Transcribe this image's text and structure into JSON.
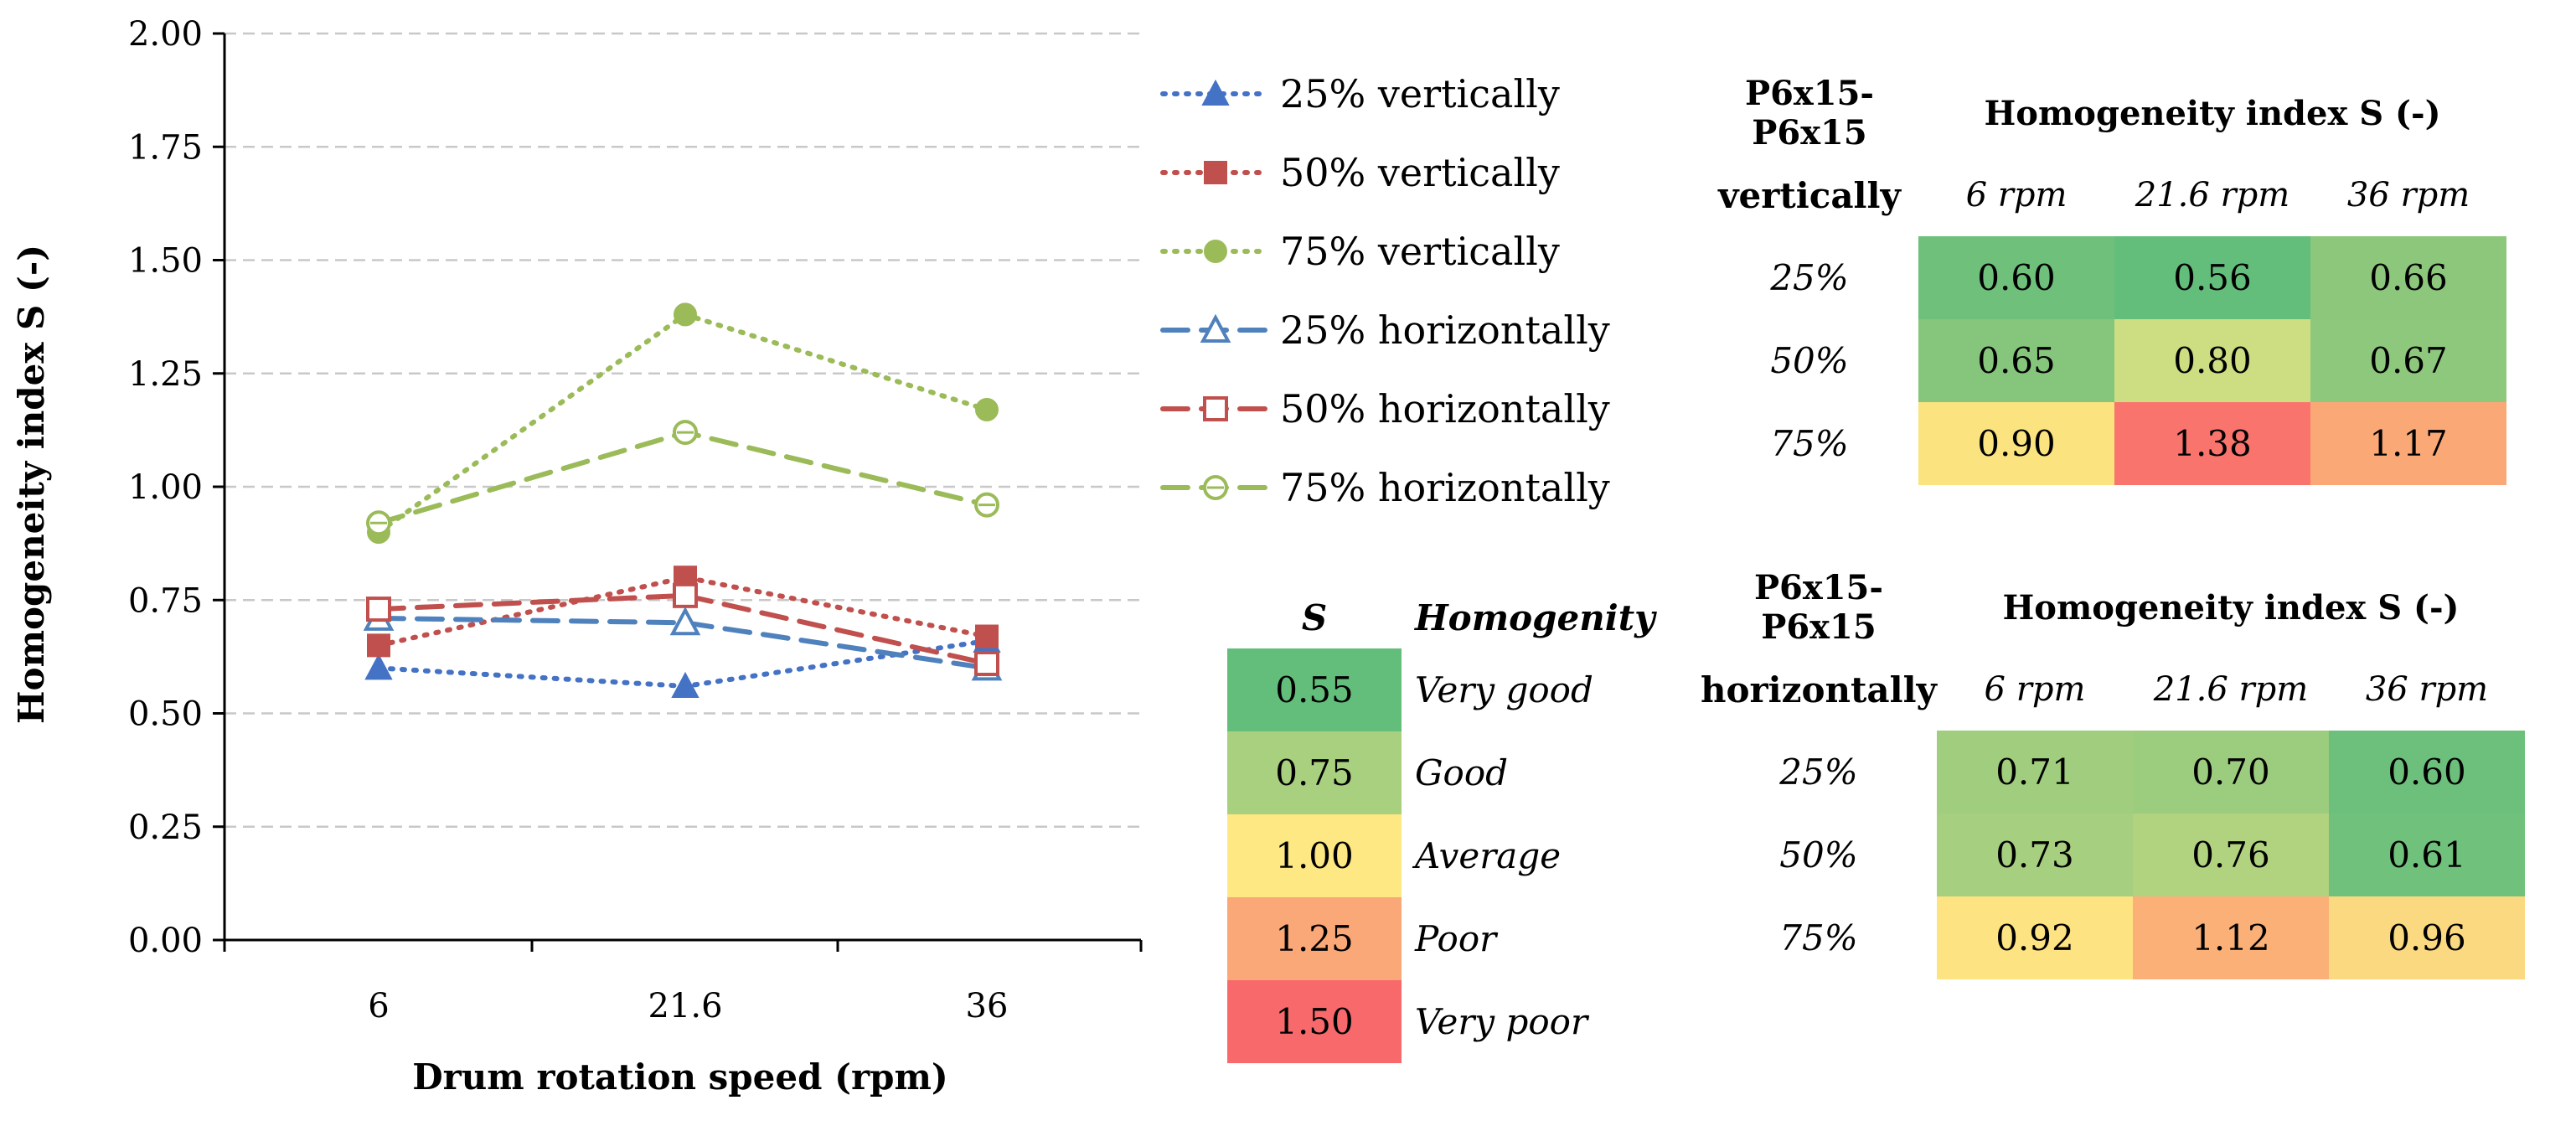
{
  "chart_data": {
    "type": "line",
    "ylabel": "Homogeneity index S (-)",
    "xlabel": "Drum rotation speed (rpm)",
    "categories": [
      "6",
      "21.6",
      "36"
    ],
    "ylim": [
      0,
      2
    ],
    "yticks": [
      "0.00",
      "0.25",
      "0.50",
      "0.75",
      "1.00",
      "1.25",
      "1.50",
      "1.75",
      "2.00"
    ],
    "grid": true,
    "legend_position": "right",
    "series": [
      {
        "name": "25% vertically",
        "values": [
          0.6,
          0.56,
          0.66
        ],
        "color": "#4472C4",
        "line": "dotted",
        "marker": "triangle-filled"
      },
      {
        "name": "50% vertically",
        "values": [
          0.65,
          0.8,
          0.67
        ],
        "color": "#C0504D",
        "line": "dotted",
        "marker": "square-filled"
      },
      {
        "name": "75% vertically",
        "values": [
          0.9,
          1.38,
          1.17
        ],
        "color": "#9BBB59",
        "line": "dotted",
        "marker": "circle-filled"
      },
      {
        "name": "25% horizontally",
        "values": [
          0.71,
          0.7,
          0.6
        ],
        "color": "#4F81BD",
        "line": "dashed",
        "marker": "triangle-open"
      },
      {
        "name": "50% horizontally",
        "values": [
          0.73,
          0.76,
          0.61
        ],
        "color": "#C0504D",
        "line": "dashed",
        "marker": "square-open"
      },
      {
        "name": "75% horizontally",
        "values": [
          0.92,
          1.12,
          0.96
        ],
        "color": "#9BBB59",
        "line": "dashed",
        "marker": "circle-open"
      }
    ]
  },
  "tables": {
    "vertical": {
      "title": "P6x15-P6x15",
      "index_title": "Homogeneity index S (-)",
      "orientation": "vertically",
      "columns": [
        "6 rpm",
        "21.6 rpm",
        "36 rpm"
      ],
      "rows": [
        {
          "label": "25%",
          "values": [
            "0.60",
            "0.56",
            "0.66"
          ],
          "colors": [
            "#6EC07A",
            "#63BE7B",
            "#8CC77C"
          ]
        },
        {
          "label": "50%",
          "values": [
            "0.65",
            "0.80",
            "0.67"
          ],
          "colors": [
            "#86C67C",
            "#CCDD82",
            "#8EC87D"
          ]
        },
        {
          "label": "75%",
          "values": [
            "0.90",
            "1.38",
            "1.17"
          ],
          "colors": [
            "#FBE47F",
            "#F8746D",
            "#FBA877"
          ]
        }
      ]
    },
    "horizontal": {
      "title": "P6x15-P6x15",
      "index_title": "Homogeneity index S (-)",
      "orientation": "horizontally",
      "columns": [
        "6 rpm",
        "21.6 rpm",
        "36 rpm"
      ],
      "rows": [
        {
          "label": "25%",
          "values": [
            "0.71",
            "0.70",
            "0.60"
          ],
          "colors": [
            "#A0CD7E",
            "#9CCC7E",
            "#6DC07B"
          ]
        },
        {
          "label": "50%",
          "values": [
            "0.73",
            "0.76",
            "0.61"
          ],
          "colors": [
            "#A6CF7F",
            "#B1D37F",
            "#70C17B"
          ]
        },
        {
          "label": "75%",
          "values": [
            "0.92",
            "1.12",
            "0.96"
          ],
          "colors": [
            "#FEE382",
            "#FBB078",
            "#FBD980"
          ]
        }
      ]
    }
  },
  "scale": {
    "header_s": "S",
    "header_label": "Homogenity",
    "items": [
      {
        "value": "0.55",
        "label": "Very good",
        "color": "#63BE7B"
      },
      {
        "value": "0.75",
        "label": "Good",
        "color": "#A8D07F"
      },
      {
        "value": "1.00",
        "label": "Average",
        "color": "#FDE883"
      },
      {
        "value": "1.25",
        "label": "Poor",
        "color": "#FBA878"
      },
      {
        "value": "1.50",
        "label": "Very poor",
        "color": "#F8696B"
      }
    ]
  }
}
